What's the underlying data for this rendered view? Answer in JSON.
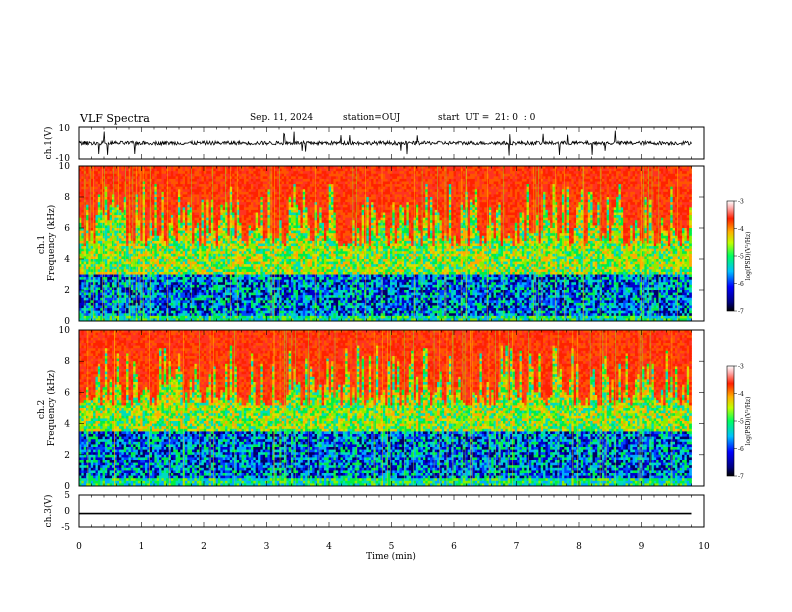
{
  "header": {
    "title": "VLF Spectra",
    "date": "Sep. 11, 2024",
    "station": "station=OUJ",
    "start": "start  UT =  21: 0  : 0"
  },
  "chart_data": [
    {
      "type": "line",
      "panel": "ch1-waveform",
      "ylabel": "ch.1(V)",
      "ylim": [
        -10,
        10
      ],
      "yticks": [
        "10",
        "-10"
      ],
      "x_range_min": [
        0,
        10
      ],
      "data_extent_min": 9.8,
      "series": [
        {
          "baseline": 0,
          "typical_amplitude": 2,
          "spike_amplitude": 8
        }
      ]
    },
    {
      "type": "heatmap",
      "panel": "ch1-spectrogram",
      "ylabel": "ch.1\nFrequency (kHz)",
      "ylim": [
        0,
        10
      ],
      "yticks": [
        "0",
        "2",
        "4",
        "6",
        "8",
        "10"
      ],
      "x_range_min": [
        0,
        10
      ],
      "data_extent_min": 9.8,
      "quiet_band_khz": [
        0.3,
        3.0
      ],
      "colorbar": {
        "label": "log(PSD)(V²/Hz)",
        "range": [
          -7,
          -3
        ],
        "ticks": [
          "-3",
          "-4",
          "-5",
          "-6",
          "-7"
        ]
      }
    },
    {
      "type": "heatmap",
      "panel": "ch2-spectrogram",
      "ylabel": "ch.2\nFrequency (kHz)",
      "ylim": [
        0,
        10
      ],
      "yticks": [
        "0",
        "2",
        "4",
        "6",
        "8",
        "10"
      ],
      "x_range_min": [
        0,
        10
      ],
      "data_extent_min": 9.8,
      "quiet_band_khz": [
        0.5,
        3.5
      ],
      "colorbar": {
        "label": "log(PSD)(V²/Hz)",
        "range": [
          -7,
          -3
        ],
        "ticks": [
          "-3",
          "-4",
          "-5",
          "-6",
          "-7"
        ]
      }
    },
    {
      "type": "line",
      "panel": "ch3-waveform",
      "ylabel": "ch.3(V)",
      "ylim": [
        -5,
        5
      ],
      "yticks": [
        "5",
        "0",
        "-5"
      ],
      "x_range_min": [
        0,
        10
      ],
      "data_extent_min": 9.8,
      "series": [
        {
          "constant_value": -0.8
        }
      ]
    }
  ],
  "xaxis": {
    "label": "Time (min)",
    "ticks": [
      "0",
      "1",
      "2",
      "3",
      "4",
      "5",
      "6",
      "7",
      "8",
      "9",
      "10"
    ]
  },
  "colors": {
    "high": "#ff2200",
    "mid": "#00ee44",
    "low": "#0000cc",
    "axis": "#000000"
  }
}
